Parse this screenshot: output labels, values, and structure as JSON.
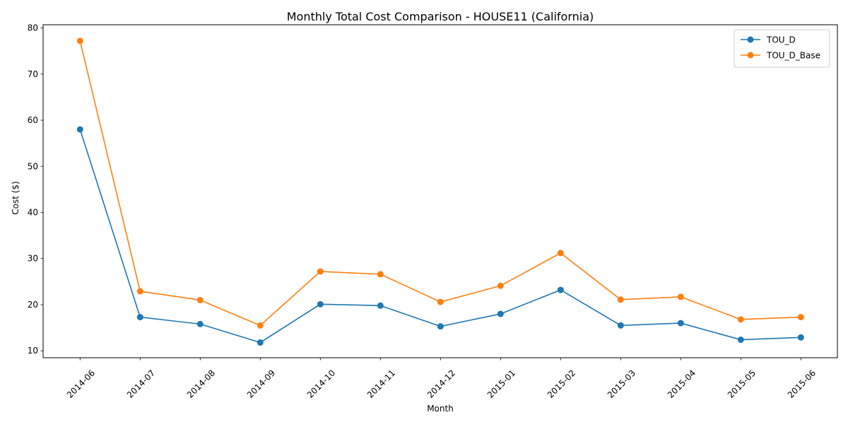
{
  "chart_data": {
    "type": "line",
    "title": "Monthly Total Cost Comparison - HOUSE11 (California)",
    "xlabel": "Month",
    "ylabel": "Cost ($)",
    "categories": [
      "2014-06",
      "2014-07",
      "2014-08",
      "2014-09",
      "2014-10",
      "2014-11",
      "2014-12",
      "2015-01",
      "2015-02",
      "2015-03",
      "2015-04",
      "2015-05",
      "2015-06"
    ],
    "ylim": [
      8.5,
      80.7
    ],
    "yticks": [
      10,
      20,
      30,
      40,
      50,
      60,
      70,
      80
    ],
    "grid": false,
    "legend_position": "top-right",
    "series": [
      {
        "name": "TOU_D",
        "color": "#1f77b4",
        "marker": "circle",
        "values": [
          58.0,
          17.3,
          15.8,
          11.8,
          20.1,
          19.8,
          15.3,
          18.0,
          23.2,
          15.5,
          16.0,
          12.4,
          12.9
        ]
      },
      {
        "name": "TOU_D_Base",
        "color": "#ff7f0e",
        "marker": "circle",
        "values": [
          77.2,
          22.9,
          21.0,
          15.5,
          27.2,
          26.6,
          20.6,
          24.1,
          31.2,
          21.1,
          21.7,
          16.8,
          17.3
        ]
      }
    ]
  }
}
